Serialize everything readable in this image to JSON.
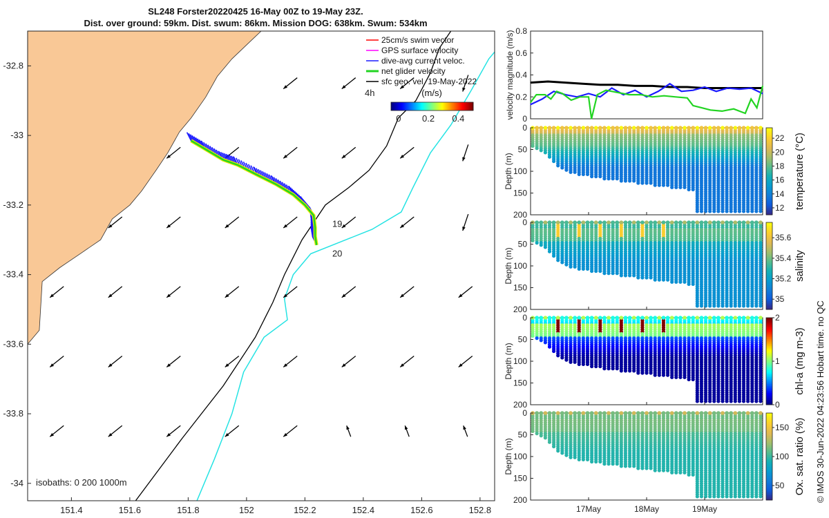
{
  "colors": {
    "land": "#f9c896",
    "sea": "#ffffff",
    "iso200": "#000000",
    "iso1000": "#24e3e3",
    "swim": "#ff0000",
    "gps": "#ff00ff",
    "dive_avg": "#1a1aff",
    "net_glider": "#22d422",
    "geo": "#000000"
  },
  "header": {
    "title_line1": "SL248 Forster20220425 16-May 00Z to 19-May 23Z.",
    "title_line2": "Dist. over ground: 59km. Dist. swum: 86km. Mission DOG: 638km. Swum: 534km"
  },
  "map": {
    "xlim": [
      151.25,
      152.85
    ],
    "ylim": [
      -34.05,
      -32.7
    ],
    "xticks": [
      "151.4",
      "151.6",
      "151.8",
      "152",
      "152.2",
      "152.4",
      "152.6",
      "152.8"
    ],
    "xtick_values": [
      151.4,
      151.6,
      151.8,
      152.0,
      152.2,
      152.4,
      152.6,
      152.8
    ],
    "yticks": [
      "-32.8",
      "-33",
      "-33.2",
      "-33.4",
      "-33.6",
      "-33.8",
      "-34"
    ],
    "ytick_values": [
      -32.8,
      -33.0,
      -33.2,
      -33.4,
      -33.6,
      -33.8,
      -34.0
    ],
    "isobath_label": "isobaths: 0   200  1000m",
    "time_labels": [
      {
        "text": "19",
        "lon": 152.27,
        "lat": -33.255
      },
      {
        "text": "20",
        "lon": 152.27,
        "lat": -33.34
      }
    ],
    "legend": {
      "items": [
        {
          "label": "25cm/s swim vector",
          "key": "swim"
        },
        {
          "label": "GPS surface velocity",
          "key": "gps"
        },
        {
          "label": "dive-avg current veloc.",
          "key": "dive_avg"
        },
        {
          "label": "net glider velocity",
          "key": "net_glider"
        },
        {
          "label": "sfc geo. vel. 19-May-2022",
          "key": "geo"
        }
      ],
      "time_step": "4h",
      "colorbar_label": "(m/s)",
      "colorbar_ticks": [
        "0",
        "0.2",
        "0.4"
      ],
      "colorbar_tick_values": [
        0,
        0.2,
        0.4
      ],
      "colorbar_range": [
        -0.05,
        0.5
      ]
    },
    "glider_track": [
      [
        151.81,
        -33.015
      ],
      [
        151.86,
        -33.04
      ],
      [
        151.92,
        -33.07
      ],
      [
        151.97,
        -33.085
      ],
      [
        152.04,
        -33.115
      ],
      [
        152.1,
        -33.14
      ],
      [
        152.16,
        -33.17
      ],
      [
        152.2,
        -33.2
      ],
      [
        152.23,
        -33.23
      ],
      [
        152.235,
        -33.265
      ],
      [
        152.235,
        -33.29
      ],
      [
        152.24,
        -33.315
      ]
    ],
    "isobath_200": [
      [
        151.62,
        -34.05
      ],
      [
        151.78,
        -33.87
      ],
      [
        151.92,
        -33.72
      ],
      [
        152.03,
        -33.58
      ],
      [
        152.09,
        -33.48
      ],
      [
        152.13,
        -33.4
      ],
      [
        152.19,
        -33.3
      ],
      [
        152.27,
        -33.2
      ],
      [
        152.35,
        -33.15
      ],
      [
        152.42,
        -33.1
      ],
      [
        152.48,
        -33.03
      ],
      [
        152.52,
        -32.95
      ],
      [
        152.58,
        -32.9
      ],
      [
        152.63,
        -32.82
      ],
      [
        152.66,
        -32.75
      ],
      [
        152.7,
        -32.7
      ]
    ],
    "isobath_1000": [
      [
        151.83,
        -34.05
      ],
      [
        151.89,
        -33.93
      ],
      [
        151.95,
        -33.8
      ],
      [
        151.99,
        -33.68
      ],
      [
        152.06,
        -33.58
      ],
      [
        152.14,
        -33.53
      ],
      [
        152.13,
        -33.47
      ],
      [
        152.16,
        -33.4
      ],
      [
        152.22,
        -33.34
      ],
      [
        152.34,
        -33.3
      ],
      [
        152.43,
        -33.27
      ],
      [
        152.53,
        -33.22
      ],
      [
        152.57,
        -33.15
      ],
      [
        152.63,
        -33.05
      ],
      [
        152.7,
        -32.97
      ],
      [
        152.77,
        -32.87
      ],
      [
        152.83,
        -32.78
      ],
      [
        152.85,
        -32.76
      ]
    ],
    "coast": [
      [
        151.25,
        -34.05
      ],
      [
        151.25,
        -33.6
      ],
      [
        151.29,
        -33.56
      ],
      [
        151.3,
        -33.42
      ],
      [
        151.36,
        -33.38
      ],
      [
        151.43,
        -33.34
      ],
      [
        151.5,
        -33.3
      ],
      [
        151.54,
        -33.24
      ],
      [
        151.6,
        -33.2
      ],
      [
        151.64,
        -33.16
      ],
      [
        151.69,
        -33.1
      ],
      [
        151.73,
        -33.05
      ],
      [
        151.77,
        -32.99
      ],
      [
        151.81,
        -32.95
      ],
      [
        151.86,
        -32.89
      ],
      [
        151.9,
        -32.83
      ],
      [
        151.95,
        -32.78
      ],
      [
        152.0,
        -32.74
      ],
      [
        152.05,
        -32.7
      ],
      [
        151.25,
        -32.7
      ]
    ]
  },
  "timeseries": {
    "ylabel": "velocity magnitude (m/s)",
    "yticks": [
      "0",
      "0.2",
      "0.4",
      "0.6",
      "0.8"
    ],
    "ytick_values": [
      0,
      0.2,
      0.4,
      0.6,
      0.8
    ],
    "ylim": [
      0,
      0.8
    ],
    "xlim": [
      16.0,
      20.0
    ],
    "series": [
      {
        "name": "sfc geo. vel.",
        "key": "geo",
        "x": [
          16.0,
          16.3,
          16.6,
          16.9,
          17.2,
          17.5,
          17.8,
          18.1,
          18.4,
          18.7,
          19.0,
          19.3,
          19.6,
          20.0
        ],
        "values": [
          0.33,
          0.34,
          0.33,
          0.32,
          0.31,
          0.31,
          0.3,
          0.3,
          0.29,
          0.29,
          0.28,
          0.28,
          0.28,
          0.28
        ]
      },
      {
        "name": "dive-avg current",
        "key": "dive_avg",
        "x": [
          16.0,
          16.2,
          16.4,
          16.6,
          16.8,
          17.0,
          17.2,
          17.4,
          17.6,
          17.8,
          18.0,
          18.2,
          18.4,
          18.6,
          18.8,
          19.0,
          19.2,
          19.4,
          19.6,
          19.8,
          20.0
        ],
        "values": [
          0.13,
          0.18,
          0.25,
          0.22,
          0.2,
          0.23,
          0.2,
          0.28,
          0.22,
          0.26,
          0.2,
          0.25,
          0.32,
          0.25,
          0.26,
          0.29,
          0.25,
          0.28,
          0.27,
          0.28,
          0.23
        ]
      },
      {
        "name": "net glider velocity",
        "key": "net_glider",
        "x": [
          16.0,
          16.1,
          16.25,
          16.35,
          16.45,
          16.55,
          16.7,
          16.85,
          17.0,
          17.05,
          17.15,
          17.3,
          17.5,
          17.7,
          17.9,
          18.1,
          18.3,
          18.5,
          18.7,
          18.8,
          18.95,
          19.1,
          19.3,
          19.5,
          19.7,
          19.8,
          19.9,
          20.0
        ],
        "values": [
          0.15,
          0.22,
          0.22,
          0.18,
          0.25,
          0.23,
          0.17,
          0.2,
          0.2,
          0.0,
          0.22,
          0.26,
          0.24,
          0.22,
          0.22,
          0.2,
          0.21,
          0.2,
          0.19,
          0.12,
          0.1,
          0.08,
          0.07,
          0.09,
          0.05,
          0.18,
          0.1,
          0.3
        ]
      }
    ]
  },
  "sections": [
    {
      "name": "temperature",
      "cbar_label": "temperature (°C)",
      "cbar_ticks": [
        "12",
        "14",
        "16",
        "18",
        "20",
        "22"
      ],
      "cbar_tick_values": [
        12,
        14,
        16,
        18,
        20,
        22
      ],
      "range": [
        11,
        23.5
      ],
      "colormap": "parula",
      "surface": 21.5,
      "bottom": 13.5,
      "band_value": 18,
      "anomaly": null
    },
    {
      "name": "salinity",
      "cbar_label": "salinity",
      "cbar_ticks": [
        "35",
        "35.2",
        "35.4",
        "35.6"
      ],
      "cbar_tick_values": [
        35.0,
        35.2,
        35.4,
        35.6
      ],
      "range": [
        34.9,
        35.75
      ],
      "colormap": "parula",
      "surface": 35.35,
      "bottom": 35.15,
      "band_value": 35.45,
      "anomaly": 35.65
    },
    {
      "name": "chl-a",
      "cbar_label": "chl-a (mg m-3)",
      "cbar_ticks": [
        "0",
        "1",
        "2"
      ],
      "cbar_tick_values": [
        0,
        1,
        2
      ],
      "range": [
        0,
        2
      ],
      "colormap": "jet",
      "surface": 0.8,
      "bottom": 0.05,
      "band_value": 1.5,
      "anomaly": 2.0
    },
    {
      "name": "oxygen",
      "cbar_label": "Ox. sat. ratio (%)",
      "cbar_ticks": [
        "50",
        "100",
        "150"
      ],
      "cbar_tick_values": [
        50,
        100,
        150
      ],
      "range": [
        25,
        175
      ],
      "colormap": "parula",
      "surface": 115,
      "bottom": 95,
      "band_value": 120,
      "anomaly": null
    }
  ],
  "section_axes": {
    "ylabel": "Depth (m)",
    "yticks": [
      "0",
      "50",
      "100",
      "150",
      "200"
    ],
    "ytick_values": [
      0,
      50,
      100,
      150,
      200
    ],
    "ylim": [
      0,
      200
    ],
    "xlim": [
      16.0,
      20.0
    ],
    "xticks": [
      "17May",
      "18May",
      "19May"
    ],
    "xtick_values": [
      17.0,
      18.0,
      19.0
    ],
    "bathymetry": {
      "x": [
        16.0,
        16.15,
        16.3,
        16.45,
        16.6,
        16.9,
        17.3,
        17.7,
        18.1,
        18.5,
        18.8,
        18.85,
        19.0,
        19.5,
        20.0
      ],
      "depth": [
        40,
        50,
        65,
        85,
        100,
        110,
        118,
        125,
        132,
        138,
        145,
        195,
        195,
        195,
        195
      ]
    }
  },
  "footer": {
    "credit": "© IMOS 30-Jun-2022 04:23:56 Hobart time. no QC"
  }
}
